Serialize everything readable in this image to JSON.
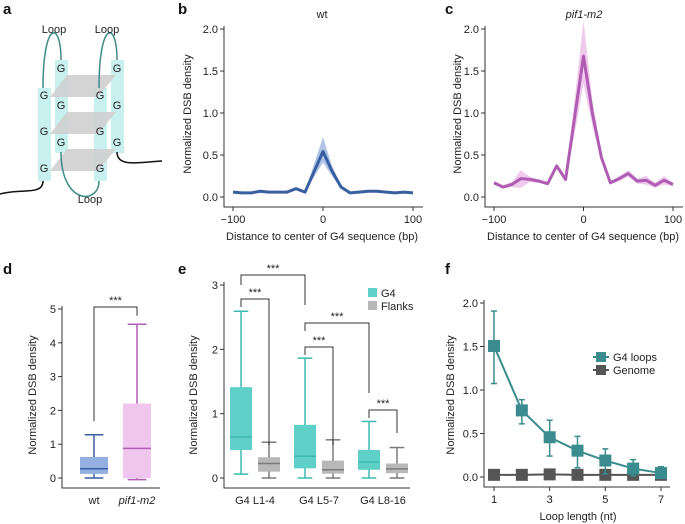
{
  "panel_labels": [
    "a",
    "b",
    "c",
    "d",
    "e",
    "f"
  ],
  "diagram": {
    "loop_label": "Loop",
    "base": "G",
    "colors": {
      "pillar": "#c8f0ef",
      "plane": "#cfcfcf",
      "loop": "#3f8a8a"
    }
  },
  "chart_data": [
    {
      "panel": "b",
      "type": "line",
      "title": "wt",
      "xlabel": "Distance to center of G4 sequence (bp)",
      "ylabel": "Normalized DSB density",
      "xlim": [
        -100,
        100
      ],
      "ylim": [
        0,
        2
      ],
      "xticks": [
        -100,
        0,
        100
      ],
      "yticks": [
        "0.0",
        "0.5",
        "1.0",
        "1.5",
        "2.0"
      ],
      "color": "#3a5fa0",
      "band_color": "#8fa9dd",
      "x": [
        -100,
        -90,
        -80,
        -70,
        -60,
        -50,
        -40,
        -30,
        -20,
        -10,
        0,
        10,
        20,
        30,
        40,
        50,
        60,
        70,
        80,
        90,
        100
      ],
      "y": [
        0.07,
        0.06,
        0.06,
        0.08,
        0.07,
        0.07,
        0.07,
        0.11,
        0.07,
        0.31,
        0.55,
        0.32,
        0.13,
        0.06,
        0.07,
        0.08,
        0.08,
        0.07,
        0.06,
        0.07,
        0.06
      ],
      "upper": [
        0.08,
        0.07,
        0.07,
        0.09,
        0.08,
        0.08,
        0.08,
        0.12,
        0.08,
        0.4,
        0.72,
        0.38,
        0.15,
        0.07,
        0.08,
        0.09,
        0.09,
        0.08,
        0.07,
        0.08,
        0.07
      ],
      "lower": [
        0.06,
        0.05,
        0.05,
        0.07,
        0.06,
        0.06,
        0.06,
        0.1,
        0.06,
        0.25,
        0.42,
        0.26,
        0.11,
        0.05,
        0.06,
        0.07,
        0.07,
        0.06,
        0.05,
        0.06,
        0.05
      ]
    },
    {
      "panel": "c",
      "type": "line",
      "title": "pif1-m2",
      "xlabel": "Distance to center of G4 sequence (bp)",
      "ylabel": "Normalized DSB density",
      "xlim": [
        -100,
        100
      ],
      "ylim": [
        0,
        2
      ],
      "xticks": [
        -100,
        0,
        100
      ],
      "yticks": [
        "0.0",
        "0.5",
        "1.0",
        "1.5",
        "2.0"
      ],
      "color": "#b05cb4",
      "band_color": "#e8b3e6",
      "x": [
        -100,
        -90,
        -80,
        -70,
        -60,
        -50,
        -40,
        -30,
        -20,
        -10,
        0,
        10,
        20,
        30,
        40,
        50,
        60,
        70,
        80,
        90,
        100
      ],
      "y": [
        0.18,
        0.13,
        0.16,
        0.23,
        0.22,
        0.2,
        0.17,
        0.38,
        0.22,
        0.95,
        1.68,
        1.0,
        0.48,
        0.18,
        0.23,
        0.29,
        0.2,
        0.21,
        0.15,
        0.21,
        0.16
      ],
      "upper": [
        0.2,
        0.15,
        0.19,
        0.33,
        0.25,
        0.22,
        0.19,
        0.4,
        0.24,
        1.15,
        2.1,
        1.15,
        0.52,
        0.2,
        0.26,
        0.33,
        0.23,
        0.26,
        0.18,
        0.26,
        0.18
      ],
      "lower": [
        0.16,
        0.11,
        0.13,
        0.12,
        0.19,
        0.18,
        0.15,
        0.36,
        0.2,
        0.75,
        1.35,
        0.85,
        0.44,
        0.16,
        0.2,
        0.25,
        0.17,
        0.16,
        0.12,
        0.16,
        0.14
      ]
    },
    {
      "panel": "d",
      "type": "box",
      "ylabel": "Normalized DSB density",
      "ylim": [
        0,
        5
      ],
      "yticks": [
        "0",
        "1",
        "2",
        "3",
        "4",
        "5"
      ],
      "categories": [
        "wt",
        "pif1-m2"
      ],
      "boxes": [
        {
          "whislo": 0.03,
          "q1": 0.15,
          "med": 0.3,
          "q3": 0.65,
          "whishi": 1.3,
          "color": "#3a5fa0",
          "fill": "#93aee0"
        },
        {
          "whislo": -0.02,
          "q1": 0.02,
          "med": 0.9,
          "q3": 2.22,
          "whishi": 4.55,
          "color": "#b05cb4",
          "fill": "#f0c6ee"
        }
      ],
      "significance": [
        {
          "label": "***"
        }
      ]
    },
    {
      "panel": "e",
      "type": "box",
      "ylabel": "Normalized DSB density",
      "ylim": [
        0,
        3.5
      ],
      "yticks": [
        "0",
        "1",
        "2",
        "3"
      ],
      "categories": [
        "G4 L1-4",
        "G4 L5-7",
        "G4 L8-16"
      ],
      "legend": [
        {
          "name": "G4",
          "color": "#5fd0c8"
        },
        {
          "name": "Flanks",
          "color": "#b8b8b8"
        }
      ],
      "boxes": [
        {
          "whislo": 0.08,
          "q1": 0.58,
          "med": 0.85,
          "q3": 1.88,
          "whishi": 3.45,
          "series": "G4"
        },
        {
          "whislo": 0,
          "q1": 0.13,
          "med": 0.3,
          "q3": 0.43,
          "whishi": 0.74,
          "series": "Flanks"
        },
        {
          "whislo": 0,
          "q1": 0.2,
          "med": 0.45,
          "q3": 1.1,
          "whishi": 2.48,
          "series": "G4"
        },
        {
          "whislo": 0,
          "q1": 0.09,
          "med": 0.17,
          "q3": 0.36,
          "whishi": 0.79,
          "series": "Flanks"
        },
        {
          "whislo": 0,
          "q1": 0.17,
          "med": 0.33,
          "q3": 0.58,
          "whishi": 1.17,
          "series": "G4"
        },
        {
          "whislo": 0,
          "q1": 0.1,
          "med": 0.19,
          "q3": 0.3,
          "whishi": 0.63,
          "series": "Flanks"
        }
      ],
      "significance": [
        {
          "label": "***"
        },
        {
          "label": "***"
        },
        {
          "label": "***"
        },
        {
          "label": "***"
        },
        {
          "label": "***"
        }
      ]
    },
    {
      "panel": "f",
      "type": "line",
      "xlabel": "Loop length (nt)",
      "ylabel": "Normalized DSB density",
      "xlim": [
        1,
        7
      ],
      "ylim": [
        0,
        2
      ],
      "xticks": [
        "1",
        "3",
        "5",
        "7"
      ],
      "yticks": [
        "0.0",
        "0.5",
        "1.0",
        "1.5",
        "2.0"
      ],
      "legend_position": "right",
      "x": [
        1,
        2,
        3,
        4,
        5,
        6,
        7
      ],
      "series": [
        {
          "name": "G4 loops",
          "color": "#3a8c8e",
          "y": [
            1.52,
            0.8,
            0.5,
            0.35,
            0.24,
            0.15,
            0.1
          ],
          "err_low": [
            1.1,
            0.65,
            0.29,
            0.16,
            0.09,
            0.07,
            0.05
          ],
          "err_high": [
            1.91,
            0.92,
            0.69,
            0.51,
            0.37,
            0.25,
            0.17
          ]
        },
        {
          "name": "Genome",
          "color": "#555555",
          "y": [
            0.08,
            0.08,
            0.085,
            0.08,
            0.08,
            0.08,
            0.08
          ]
        }
      ]
    }
  ]
}
